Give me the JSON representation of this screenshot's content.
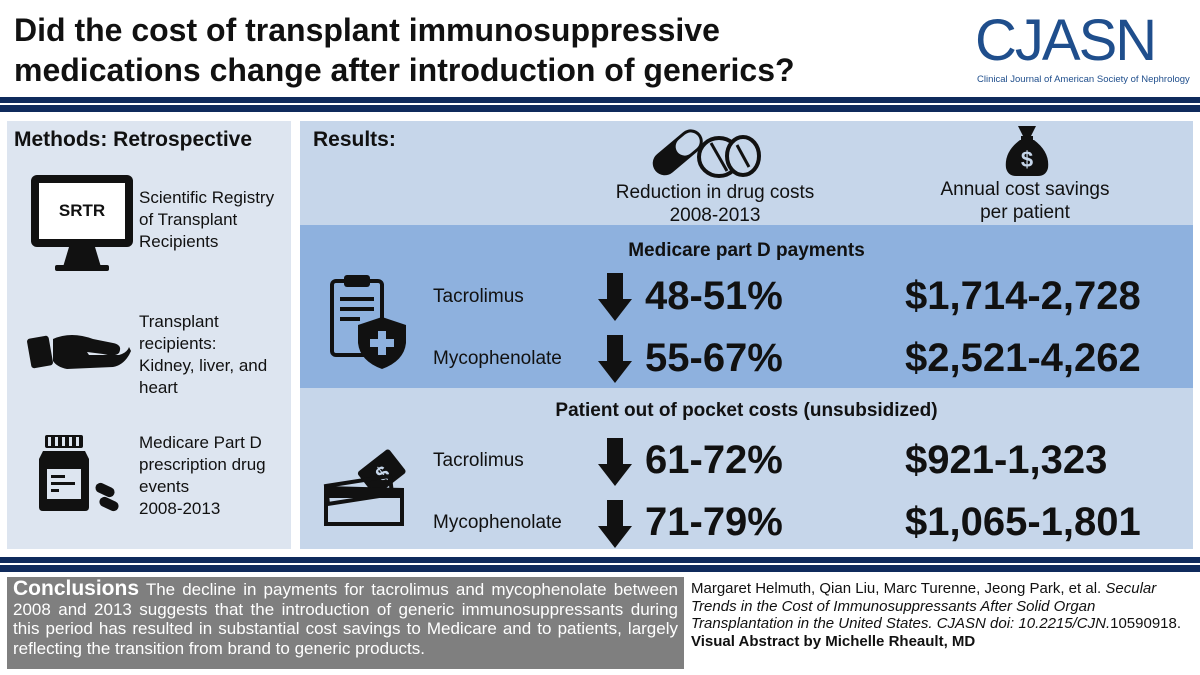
{
  "header": {
    "title_line1": "Did the cost of transplant immunosuppressive",
    "title_line2": "medications change after introduction of generics?",
    "logo_text": "CJASN",
    "logo_subtitle": "Clinical Journal of American Society of Nephrology"
  },
  "methods": {
    "title": "Methods: Retrospective",
    "monitor_label": "SRTR",
    "items": [
      {
        "lines": [
          "Scientific Registry",
          "of Transplant",
          "Recipients"
        ],
        "icon": "monitor-icon"
      },
      {
        "lines": [
          "Transplant",
          "recipients:",
          "Kidney, liver, and",
          "heart"
        ],
        "icon": "hand-icon"
      },
      {
        "lines": [
          "Medicare Part D",
          "prescription drug",
          "events",
          "2008-2013"
        ],
        "icon": "pill-bottle-icon"
      }
    ]
  },
  "results": {
    "title": "Results:",
    "col1_line1": "Reduction in drug costs",
    "col1_line2": "2008-2013",
    "col2_line1": "Annual cost savings",
    "col2_line2": "per patient",
    "sections": [
      {
        "title": "Medicare part D payments",
        "rows": [
          {
            "drug": "Tacrolimus",
            "reduction": "48-51%",
            "savings": "$1,714-2,728"
          },
          {
            "drug": "Mycophenolate",
            "reduction": "55-67%",
            "savings": "$2,521-4,262"
          }
        ]
      },
      {
        "title": "Patient out of pocket costs (unsubsidized)",
        "rows": [
          {
            "drug": "Tacrolimus",
            "reduction": "61-72%",
            "savings": "$921-1,323"
          },
          {
            "drug": "Mycophenolate",
            "reduction": "71-79%",
            "savings": "$1,065-1,801"
          }
        ]
      }
    ]
  },
  "conclusions": {
    "heading": "Conclusions",
    "text": "The decline in payments for tacrolimus and mycophenolate between 2008 and 2013 suggests that the introduction of generic immunosuppressants during this period has resulted in substantial cost savings to Medicare and to patients, largely reflecting the transition from brand to generic products."
  },
  "citation": {
    "authors": "Margaret Helmuth, Qian Liu, Marc Turenne, Jeong Park, et al.",
    "title": "Secular Trends in the Cost of Immunosuppressants After Solid Organ Transplantation in the United States. CJASN doi: 10.2215/CJN.",
    "doi_tail": "10590918.",
    "credit": "Visual Abstract by Michelle Rheault, MD"
  },
  "colors": {
    "navy": "#0f2a5c",
    "band_dark": "#8eb1de",
    "band_light": "#c6d6ea",
    "methods_bg": "#dde5f0",
    "logo_blue": "#1f4e8c"
  }
}
